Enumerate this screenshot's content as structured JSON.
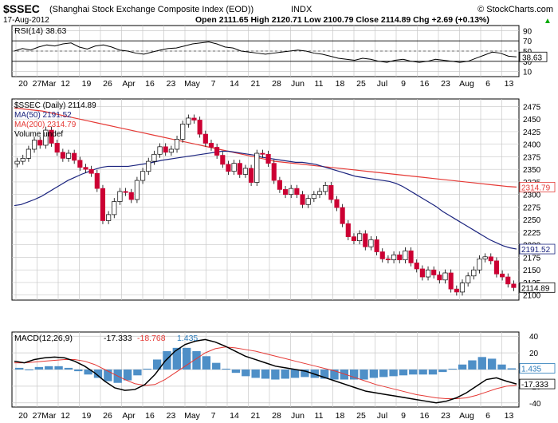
{
  "header": {
    "symbol": "$SSEC",
    "name": "(Shanghai Stock Exchange Composite Index (EOD))",
    "exchange": "INDX",
    "watermark": "© StockCharts.com",
    "date": "17-Aug-2012",
    "ohlc": "Open 2111.65  High 2120.71  Low 2100.79  Close 2114.89  Chg +2.69 (+0.13%)",
    "up_arrow": "▲"
  },
  "colors": {
    "up_candle": "#ffffff",
    "down_candle": "#cc0033",
    "ma50": "#1a237e",
    "ma200": "#e53935",
    "macd_line": "#000000",
    "signal_line": "#e53935",
    "histogram": "#4e8fc7",
    "grid": "#c8c8c8"
  },
  "chart_data": [
    {
      "type": "line",
      "panel": "rsi",
      "title": "RSI(14) 38.63",
      "ylim": [
        0,
        100
      ],
      "ticks": [
        "90",
        "70",
        "50",
        "30",
        "10"
      ],
      "reference_lines": [
        70,
        30
      ],
      "last_value_label": "38.63",
      "series": [
        {
          "name": "RSI(14)",
          "values": [
            50,
            55,
            52,
            58,
            62,
            60,
            64,
            66,
            58,
            54,
            60,
            62,
            58,
            52,
            50,
            46,
            44,
            48,
            52,
            55,
            56,
            60,
            64,
            66,
            68,
            64,
            58,
            56,
            50,
            48,
            46,
            44,
            46,
            48,
            50,
            52,
            50,
            46,
            44,
            40,
            36,
            34,
            32,
            36,
            34,
            30,
            28,
            32,
            34,
            30,
            28,
            30,
            34,
            32,
            30,
            28,
            30,
            36,
            42,
            48,
            46,
            40,
            38.63
          ]
        }
      ],
      "x_labels": [
        "20",
        "27Mar",
        "12",
        "19",
        "26",
        "Apr",
        "16",
        "23",
        "May",
        "7",
        "14",
        "21",
        "28",
        "Jun",
        "11",
        "18",
        "25",
        "Jul",
        "9",
        "16",
        "23",
        "Aug",
        "6",
        "13"
      ],
      "grid": true
    },
    {
      "type": "candlestick",
      "panel": "price",
      "legend": [
        {
          "name": "$SSEC (Daily)",
          "value": "2114.89"
        },
        {
          "name": "MA(50)",
          "value": "2191.52"
        },
        {
          "name": "MA(200)",
          "value": "2314.79"
        },
        {
          "name": "Volume",
          "value": "undef"
        }
      ],
      "ylim": [
        2090,
        2490
      ],
      "ticks": [
        "2475",
        "2450",
        "2425",
        "2400",
        "2375",
        "2350",
        "2325",
        "2300",
        "2275",
        "2250",
        "2225",
        "2200",
        "2175",
        "2150",
        "2125",
        "2100"
      ],
      "x_labels": [
        "20",
        "27Mar",
        "12",
        "19",
        "26",
        "Apr",
        "16",
        "23",
        "May",
        "7",
        "14",
        "21",
        "28",
        "Jun",
        "11",
        "18",
        "25",
        "Jul",
        "9",
        "16",
        "23",
        "Aug",
        "6",
        "13"
      ],
      "close": [
        2366,
        2372,
        2390,
        2408,
        2398,
        2428,
        2402,
        2384,
        2372,
        2382,
        2368,
        2354,
        2350,
        2342,
        2312,
        2248,
        2260,
        2286,
        2306,
        2304,
        2290,
        2328,
        2346,
        2366,
        2380,
        2395,
        2384,
        2390,
        2410,
        2440,
        2452,
        2448,
        2420,
        2402,
        2394,
        2378,
        2360,
        2346,
        2362,
        2340,
        2352,
        2324,
        2382,
        2380,
        2362,
        2328,
        2310,
        2300,
        2312,
        2300,
        2280,
        2292,
        2300,
        2306,
        2318,
        2290,
        2274,
        2242,
        2216,
        2208,
        2222,
        2196,
        2210,
        2186,
        2172,
        2170,
        2180,
        2170,
        2188,
        2164,
        2152,
        2136,
        2150,
        2140,
        2130,
        2144,
        2112,
        2106,
        2124,
        2138,
        2150,
        2172,
        2176,
        2168,
        2142,
        2136,
        2122,
        2114.89
      ],
      "ma50": [
        2278,
        2280,
        2285,
        2290,
        2296,
        2304,
        2312,
        2320,
        2328,
        2334,
        2340,
        2345,
        2350,
        2354,
        2356,
        2356,
        2356,
        2356,
        2358,
        2360,
        2362,
        2365,
        2368,
        2370,
        2372,
        2374,
        2376,
        2378,
        2380,
        2382,
        2384,
        2386,
        2386,
        2384,
        2382,
        2380,
        2378,
        2374,
        2372,
        2370,
        2368,
        2366,
        2364,
        2364,
        2362,
        2360,
        2356,
        2352,
        2348,
        2344,
        2340,
        2336,
        2334,
        2332,
        2330,
        2328,
        2326,
        2322,
        2316,
        2308,
        2300,
        2292,
        2284,
        2276,
        2266,
        2258,
        2250,
        2242,
        2234,
        2226,
        2218,
        2210,
        2204,
        2198,
        2194,
        2191.52
      ],
      "ma200": [
        2472,
        2470,
        2468,
        2466,
        2462,
        2458,
        2454,
        2450,
        2446,
        2442,
        2438,
        2434,
        2430,
        2426,
        2422,
        2418,
        2414,
        2410,
        2406,
        2402,
        2398,
        2394,
        2390,
        2386,
        2382,
        2378,
        2374,
        2370,
        2366,
        2364,
        2362,
        2360,
        2358,
        2356,
        2354,
        2352,
        2350,
        2348,
        2346,
        2344,
        2342,
        2340,
        2338,
        2336,
        2334,
        2332,
        2330,
        2328,
        2326,
        2324,
        2322,
        2320,
        2318,
        2316,
        2314.79
      ],
      "last_labels": {
        "ma200": "2314.79",
        "ma50": "2191.52",
        "close": "2114.89"
      },
      "grid": true
    },
    {
      "type": "line",
      "panel": "macd",
      "title": "MACD(12,26,9)",
      "values_text": {
        "macd": "-17.333",
        "signal": "-18.768",
        "histogram": "1.435"
      },
      "ylim": [
        -45,
        45
      ],
      "ticks": [
        "40",
        "20",
        "0",
        "-20",
        "-40"
      ],
      "last_labels": {
        "histogram": "1.435",
        "macd": "-17.333"
      },
      "series": [
        {
          "name": "MACD",
          "values": [
            10,
            8,
            12,
            14,
            15,
            14,
            10,
            4,
            -4,
            -14,
            -22,
            -25,
            -24,
            -18,
            -6,
            10,
            22,
            30,
            34,
            36,
            33,
            28,
            22,
            16,
            12,
            8,
            4,
            2,
            0,
            -2,
            -6,
            -10,
            -14,
            -18,
            -22,
            -26,
            -28,
            -30,
            -32,
            -34,
            -36,
            -38,
            -40,
            -38,
            -34,
            -28,
            -20,
            -12,
            -10,
            -14,
            -17.333
          ]
        },
        {
          "name": "Signal",
          "values": [
            8,
            8,
            9,
            10,
            11,
            12,
            12,
            10,
            6,
            0,
            -6,
            -12,
            -17,
            -19,
            -18,
            -12,
            -4,
            4,
            12,
            20,
            25,
            27,
            26,
            24,
            22,
            19,
            16,
            13,
            10,
            7,
            4,
            1,
            -2,
            -6,
            -10,
            -14,
            -18,
            -21,
            -24,
            -27,
            -30,
            -32,
            -34,
            -35,
            -35,
            -34,
            -31,
            -27,
            -23,
            -20,
            -18.768
          ]
        },
        {
          "name": "Histogram",
          "values": [
            2,
            0,
            3,
            4,
            4,
            2,
            -2,
            -6,
            -10,
            -14,
            -16,
            -13,
            -7,
            1,
            12,
            22,
            26,
            26,
            22,
            16,
            8,
            1,
            -4,
            -8,
            -10,
            -11,
            -12,
            -11,
            -10,
            -9,
            -10,
            -11,
            -12,
            -12,
            -12,
            -12,
            -10,
            -9,
            -8,
            -7,
            -6,
            -6,
            -6,
            -3,
            1,
            6,
            11,
            15,
            13,
            6,
            1.435
          ]
        }
      ],
      "x_labels": [
        "20",
        "27Mar",
        "12",
        "19",
        "26",
        "Apr",
        "16",
        "23",
        "May",
        "7",
        "14",
        "21",
        "28",
        "Jun",
        "11",
        "18",
        "25",
        "Jul",
        "9",
        "16",
        "23",
        "Aug",
        "6",
        "13"
      ],
      "grid": true
    }
  ]
}
